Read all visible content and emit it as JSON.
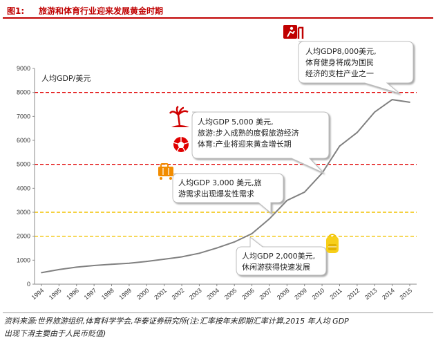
{
  "header": {
    "figure_no": "图1:",
    "title": "旅游和体育行业迎来发展黄金时期"
  },
  "chart_data": {
    "type": "line",
    "title": "",
    "xlabel": "",
    "ylabel": "人均GDP/美元",
    "ylim": [
      0,
      9000
    ],
    "yticks": [
      "0",
      "1000",
      "2000",
      "3000",
      "4000",
      "5000",
      "6000",
      "7000",
      "8000",
      "9000"
    ],
    "x": [
      "1994",
      "1995",
      "1996",
      "1997",
      "1998",
      "1999",
      "2000",
      "2001",
      "2002",
      "2003",
      "2004",
      "2005",
      "2006",
      "2007",
      "2008",
      "2009",
      "2010",
      "2011",
      "2012",
      "2013",
      "2014",
      "2015"
    ],
    "series": [
      {
        "values": [
          480,
          610,
          710,
          780,
          830,
          870,
          950,
          1040,
          1140,
          1290,
          1510,
          1760,
          2110,
          2730,
          3490,
          3840,
          4630,
          5760,
          6330,
          7180,
          7700,
          7590
        ],
        "color": "#808080"
      }
    ],
    "reference_lines": [
      {
        "value": 2000,
        "color": "#f2c200"
      },
      {
        "value": 3000,
        "color": "#f2c200"
      },
      {
        "value": 5000,
        "color": "#e00000"
      },
      {
        "value": 8000,
        "color": "#e00000"
      }
    ],
    "grid": false,
    "legend": "none"
  },
  "annotations": {
    "gdp8000": {
      "line1": "人均GDP8,000美元,",
      "line2": "体育健身将成为国民",
      "line3": "经济的支柱产业之一"
    },
    "gdp5000": {
      "line1": "人均GDP 5,000 美元,",
      "line2": "旅游:步入成熟的度假旅游经济",
      "line3": "体育:产业将迎来黄金增长期"
    },
    "gdp3000": {
      "line1": "人均GDP 3,000 美元,旅",
      "line2": "游需求出现爆发性需求"
    },
    "gdp2000": {
      "line1": "人均GDP 2,000美元,",
      "line2": "休闲游获得快速发展"
    }
  },
  "icons": {
    "hurdle": "hurdle-runner-icon",
    "palm": "palm-beach-icon",
    "ball": "soccer-ball-icon",
    "luggage": "luggage-icon",
    "backpack": "backpack-icon"
  },
  "source": {
    "line1": "资料来源:世界旅游组织,体育科学学会,华泰证券研究所(注:汇率按年末即期汇率计算,2015 年人均 GDP",
    "line2": "出现下滑主要由于人民币贬值)"
  }
}
